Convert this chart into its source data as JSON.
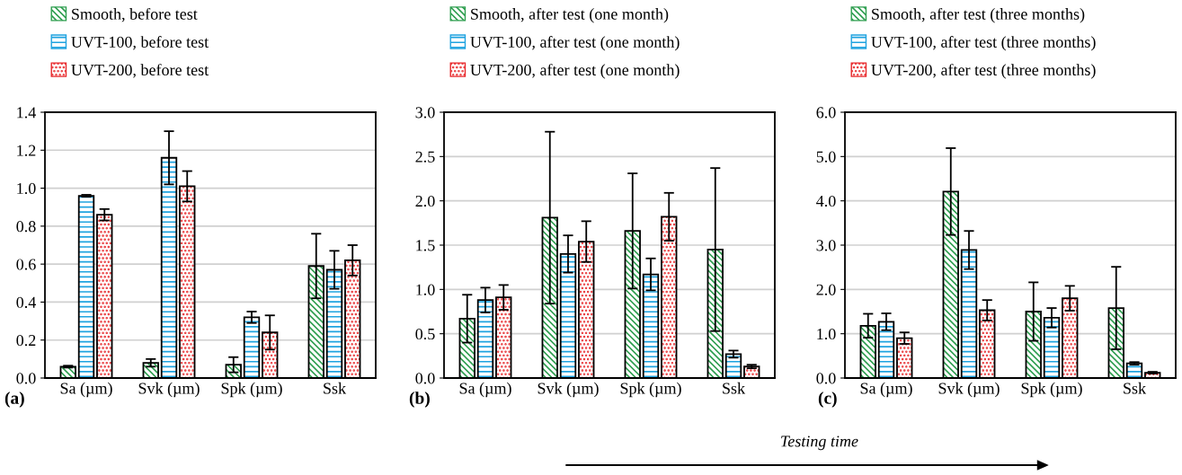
{
  "chart_data": [
    {
      "type": "bar",
      "categories": [
        "Sa (µm)",
        "Svk (µm)",
        "Spk (µm)",
        "Ssk"
      ],
      "ylim": [
        0,
        1.4
      ],
      "yticks": [
        {
          "value": 0,
          "label": "0.0"
        },
        0.2,
        0.4,
        0.6,
        0.8,
        {
          "value": 1,
          "label": "1.0"
        },
        1.2,
        1.4
      ],
      "grid": "y",
      "legend": "top",
      "annotations": [
        "(a)"
      ],
      "series": [
        {
          "name": "Smooth, before test",
          "color": "#2e9e4f",
          "values": [
            0.06,
            0.08,
            0.07,
            0.59
          ],
          "errors": [
            0.005,
            0.02,
            0.04,
            0.17
          ]
        },
        {
          "name": "UVT-100, before test",
          "color": "#1fa3e0",
          "values": [
            0.96,
            1.16,
            0.32,
            0.57
          ],
          "errors": [
            0.005,
            0.14,
            0.03,
            0.1
          ]
        },
        {
          "name": "UVT-200, before test",
          "color": "#e8272a",
          "values": [
            0.86,
            1.01,
            0.24,
            0.62
          ],
          "errors": [
            0.03,
            0.08,
            0.09,
            0.08
          ]
        }
      ]
    },
    {
      "type": "bar",
      "categories": [
        "Sa (µm)",
        "Svk (µm)",
        "Spk (µm)",
        "Ssk"
      ],
      "ylim": [
        0,
        3
      ],
      "yticks": [
        {
          "value": 0,
          "label": "0.0"
        },
        0.5,
        {
          "value": 1,
          "label": "1.0"
        },
        1.5,
        {
          "value": 2,
          "label": "2.0"
        },
        2.5,
        {
          "value": 3,
          "label": "3.0"
        }
      ],
      "grid": "y",
      "legend": "top",
      "annotations": [
        "(b)"
      ],
      "series": [
        {
          "name": "Smooth, after test (one month)",
          "color": "#2e9e4f",
          "values": [
            0.67,
            1.81,
            1.66,
            1.45
          ],
          "errors": [
            0.27,
            0.97,
            0.65,
            0.92
          ]
        },
        {
          "name": "UVT-100, after test (one month)",
          "color": "#1fa3e0",
          "values": [
            0.88,
            1.4,
            1.17,
            0.27
          ],
          "errors": [
            0.14,
            0.21,
            0.18,
            0.04
          ]
        },
        {
          "name": "UVT-200, after test (one month)",
          "color": "#e8272a",
          "values": [
            0.91,
            1.54,
            1.82,
            0.13
          ],
          "errors": [
            0.14,
            0.23,
            0.27,
            0.02
          ]
        }
      ]
    },
    {
      "type": "bar",
      "categories": [
        "Sa (µm)",
        "Svk (µm)",
        "Spk (µm)",
        "Ssk"
      ],
      "ylim": [
        0,
        6
      ],
      "yticks": [
        {
          "value": 0,
          "label": "0.0"
        },
        {
          "value": 1,
          "label": "1.0"
        },
        {
          "value": 2,
          "label": "2.0"
        },
        {
          "value": 3,
          "label": "3.0"
        },
        {
          "value": 4,
          "label": "4.0"
        },
        {
          "value": 5,
          "label": "5.0"
        },
        {
          "value": 6,
          "label": "6.0"
        }
      ],
      "grid": "y",
      "legend": "top",
      "annotations": [
        "(c)",
        "Testing time"
      ],
      "series": [
        {
          "name": "Smooth, after test (three months)",
          "color": "#2e9e4f",
          "values": [
            1.18,
            4.21,
            1.5,
            1.58
          ],
          "errors": [
            0.27,
            0.98,
            0.66,
            0.93
          ]
        },
        {
          "name": "UVT-100, after test (three months)",
          "color": "#1fa3e0",
          "values": [
            1.27,
            2.89,
            1.36,
            0.33
          ],
          "errors": [
            0.19,
            0.43,
            0.22,
            0.03
          ]
        },
        {
          "name": "UVT-200, after test (three months)",
          "color": "#e8272a",
          "values": [
            0.9,
            1.53,
            1.8,
            0.12
          ],
          "errors": [
            0.13,
            0.23,
            0.28,
            0.02
          ]
        }
      ]
    }
  ]
}
